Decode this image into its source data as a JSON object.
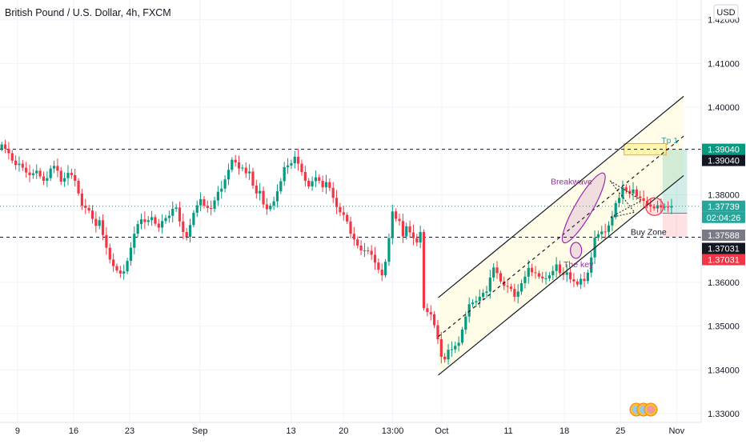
{
  "chart_data": {
    "type": "candlestick",
    "title": "British Pound / U.S. Dollar, 4h, FXCM",
    "currency_button": "USD",
    "y_ticks": [
      {
        "value": 1.33,
        "label": "1.33000"
      },
      {
        "value": 1.34,
        "label": "1.34000"
      },
      {
        "value": 1.35,
        "label": "1.35000"
      },
      {
        "value": 1.36,
        "label": "1.36000"
      },
      {
        "value": 1.37,
        "label": ""
      },
      {
        "value": 1.38,
        "label": "1.38000"
      },
      {
        "value": 1.39,
        "label": ""
      },
      {
        "value": 1.4,
        "label": "1.40000"
      },
      {
        "value": 1.41,
        "label": "1.41000"
      },
      {
        "value": 1.42,
        "label": "1.42000"
      }
    ],
    "ylim": [
      1.328,
      1.4245
    ],
    "x_ticks": [
      {
        "t": 5,
        "label": "9"
      },
      {
        "t": 21,
        "label": "16"
      },
      {
        "t": 37,
        "label": "23"
      },
      {
        "t": 57,
        "label": "Sep"
      },
      {
        "t": 83,
        "label": "13"
      },
      {
        "t": 98,
        "label": "20"
      },
      {
        "t": 112,
        "label": "13:00"
      },
      {
        "t": 126,
        "label": "Oct"
      },
      {
        "t": 145,
        "label": "11"
      },
      {
        "t": 161,
        "label": "18"
      },
      {
        "t": 177,
        "label": "25"
      },
      {
        "t": 193,
        "label": "Nov"
      }
    ],
    "x_range": [
      0,
      200
    ],
    "close_series": [
      1.3915,
      1.3905,
      1.3895,
      1.3878,
      1.3868,
      1.3871,
      1.3862,
      1.3851,
      1.3845,
      1.3849,
      1.3855,
      1.3842,
      1.3832,
      1.3838,
      1.386,
      1.3866,
      1.3855,
      1.383,
      1.3838,
      1.385,
      1.3845,
      1.3832,
      1.3803,
      1.3775,
      1.377,
      1.3764,
      1.3745,
      1.3729,
      1.3742,
      1.3708,
      1.3679,
      1.3652,
      1.3637,
      1.3627,
      1.362,
      1.3625,
      1.3649,
      1.3679,
      1.3711,
      1.3733,
      1.3744,
      1.3738,
      1.3742,
      1.3749,
      1.3734,
      1.3725,
      1.374,
      1.3747,
      1.3752,
      1.3768,
      1.3771,
      1.3739,
      1.3715,
      1.3704,
      1.3731,
      1.3759,
      1.3776,
      1.379,
      1.3775,
      1.377,
      1.3768,
      1.3787,
      1.3807,
      1.3814,
      1.3835,
      1.3857,
      1.388,
      1.3874,
      1.386,
      1.3862,
      1.3849,
      1.3853,
      1.3821,
      1.3803,
      1.3809,
      1.3778,
      1.3767,
      1.3775,
      1.3785,
      1.3808,
      1.3831,
      1.3863,
      1.3867,
      1.3872,
      1.3887,
      1.3871,
      1.3852,
      1.3832,
      1.3819,
      1.3831,
      1.384,
      1.3832,
      1.3817,
      1.3829,
      1.3816,
      1.3793,
      1.3772,
      1.376,
      1.3754,
      1.3739,
      1.3711,
      1.3698,
      1.3684,
      1.3673,
      1.3673,
      1.3672,
      1.3663,
      1.3645,
      1.3629,
      1.3616,
      1.3647,
      1.3701,
      1.3762,
      1.3745,
      1.374,
      1.3705,
      1.3728,
      1.3714,
      1.3701,
      1.3691,
      1.3715,
      1.3541,
      1.3532,
      1.3527,
      1.3502,
      1.347,
      1.343,
      1.3424,
      1.3446,
      1.3447,
      1.3455,
      1.3462,
      1.3492,
      1.3522,
      1.355,
      1.3554,
      1.3557,
      1.3567,
      1.3576,
      1.3579,
      1.3611,
      1.3634,
      1.3621,
      1.3602,
      1.3592,
      1.359,
      1.3585,
      1.3567,
      1.3579,
      1.3598,
      1.3613,
      1.3633,
      1.3623,
      1.3621,
      1.3613,
      1.3609,
      1.3609,
      1.3616,
      1.3626,
      1.3641,
      1.3621,
      1.3617,
      1.3623,
      1.3607,
      1.3602,
      1.3595,
      1.3608,
      1.3603,
      1.3622,
      1.3657,
      1.3702,
      1.371,
      1.3716,
      1.3715,
      1.373,
      1.3749,
      1.3781,
      1.3793,
      1.3817,
      1.3809,
      1.3803,
      1.3812,
      1.3796,
      1.3792,
      1.3786,
      1.3778,
      1.3773,
      1.3769,
      1.3776,
      1.3771,
      1.3773,
      1.3771,
      1.3774
    ],
    "horizontal_levels": [
      {
        "value": 1.3904,
        "style": "dashed"
      },
      {
        "value": 1.37031,
        "style": "dashed"
      }
    ],
    "price_labels": [
      {
        "value": 1.3904,
        "text": "1.39040",
        "bg": "#089981",
        "fg": "#ffffff"
      },
      {
        "value": 1.3904,
        "text": "1.39040",
        "bg": "#131722",
        "fg": "#ffffff"
      },
      {
        "value": 1.37739,
        "text": "1.37739",
        "bg": "#26a69a",
        "fg": "#ffffff"
      },
      {
        "value": 1.37739,
        "text": "02:04:26",
        "bg": "#26a69a",
        "fg": "#ffffff"
      },
      {
        "value": 1.37588,
        "text": "1.37588",
        "bg": "#787b86",
        "fg": "#ffffff"
      },
      {
        "value": 1.37031,
        "text": "1.37031",
        "bg": "#131722",
        "fg": "#ffffff"
      },
      {
        "value": 1.37031,
        "text": "1.37031",
        "bg": "#f23645",
        "fg": "#ffffff"
      }
    ],
    "channel": {
      "lower": [
        [
          125,
          1.3388
        ],
        [
          195,
          1.3844
        ]
      ],
      "upper": [
        [
          125,
          1.3565
        ],
        [
          195,
          1.4025
        ]
      ],
      "middle": [
        [
          125,
          1.3476
        ],
        [
          195,
          1.3934
        ]
      ]
    },
    "annotations": [
      {
        "text": "Breakwave",
        "t": 163,
        "value": 1.3824,
        "color": "#9c27b0"
      },
      {
        "text": "The key",
        "t": 165,
        "value": 1.3635,
        "color": "#9c27b0"
      },
      {
        "text": "Buy Zone",
        "t": 185,
        "value": 1.3709,
        "color": "#131722"
      },
      {
        "text": "Tp 1",
        "t": 191,
        "value": 1.3918,
        "color": "#26a69a"
      }
    ],
    "position": {
      "entry": 1.3758,
      "target": 1.3904,
      "stop": 1.3703,
      "t_start": 189,
      "t_end": 196
    },
    "tp_box": {
      "t_start": 178,
      "t_end": 190,
      "top": 1.3917,
      "bottom": 1.3891
    },
    "colors": {
      "up": "#089981",
      "down": "#f23645",
      "channel_fill": "#fffde7",
      "ellipse": "#9c27b0",
      "buy_zone": "#f23645",
      "grid": "#f0f3fa",
      "text": "#131722"
    }
  }
}
